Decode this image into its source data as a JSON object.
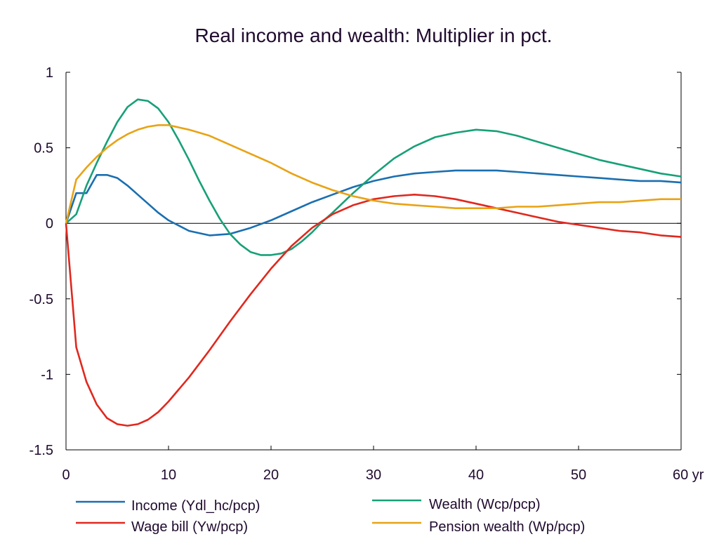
{
  "chart_data": {
    "type": "line",
    "title": "Real income and wealth: Multiplier in pct.",
    "xlabel": "",
    "ylabel": "",
    "xlim": [
      0,
      60
    ],
    "ylim": [
      -1.5,
      1
    ],
    "x_ticks": [
      0,
      10,
      20,
      30,
      40,
      50,
      60
    ],
    "x_tick_labels": [
      "0",
      "10",
      "20",
      "30",
      "40",
      "50",
      "60 yr"
    ],
    "y_ticks": [
      1,
      0.5,
      0,
      -0.5,
      -1,
      -1.5
    ],
    "y_tick_labels": [
      "1",
      "0.5",
      "0",
      "-0.5",
      "-1",
      "-1.5"
    ],
    "zero_line": true,
    "grid": false,
    "legend_position": "bottom",
    "series": [
      {
        "name": "Income (Ydl_hc/pcp)",
        "color": "#1a6fb0",
        "points": [
          [
            0,
            0
          ],
          [
            1,
            0.2
          ],
          [
            2,
            0.2
          ],
          [
            3,
            0.32
          ],
          [
            4,
            0.32
          ],
          [
            5,
            0.3
          ],
          [
            6,
            0.25
          ],
          [
            7,
            0.19
          ],
          [
            8,
            0.13
          ],
          [
            9,
            0.07
          ],
          [
            10,
            0.02
          ],
          [
            12,
            -0.05
          ],
          [
            14,
            -0.08
          ],
          [
            16,
            -0.07
          ],
          [
            18,
            -0.03
          ],
          [
            20,
            0.02
          ],
          [
            22,
            0.08
          ],
          [
            24,
            0.14
          ],
          [
            26,
            0.19
          ],
          [
            28,
            0.24
          ],
          [
            30,
            0.28
          ],
          [
            32,
            0.31
          ],
          [
            34,
            0.33
          ],
          [
            36,
            0.34
          ],
          [
            38,
            0.35
          ],
          [
            40,
            0.35
          ],
          [
            42,
            0.35
          ],
          [
            44,
            0.34
          ],
          [
            46,
            0.33
          ],
          [
            48,
            0.32
          ],
          [
            50,
            0.31
          ],
          [
            52,
            0.3
          ],
          [
            54,
            0.29
          ],
          [
            56,
            0.28
          ],
          [
            58,
            0.28
          ],
          [
            60,
            0.27
          ]
        ]
      },
      {
        "name": "Wealth (Wcp/pcp)",
        "color": "#17a078",
        "points": [
          [
            0,
            0
          ],
          [
            1,
            0.06
          ],
          [
            2,
            0.25
          ],
          [
            3,
            0.4
          ],
          [
            4,
            0.54
          ],
          [
            5,
            0.67
          ],
          [
            6,
            0.77
          ],
          [
            7,
            0.82
          ],
          [
            8,
            0.81
          ],
          [
            9,
            0.76
          ],
          [
            10,
            0.67
          ],
          [
            11,
            0.55
          ],
          [
            12,
            0.42
          ],
          [
            13,
            0.28
          ],
          [
            14,
            0.15
          ],
          [
            15,
            0.03
          ],
          [
            16,
            -0.07
          ],
          [
            17,
            -0.14
          ],
          [
            18,
            -0.19
          ],
          [
            19,
            -0.21
          ],
          [
            20,
            -0.21
          ],
          [
            21,
            -0.2
          ],
          [
            22,
            -0.17
          ],
          [
            23,
            -0.12
          ],
          [
            24,
            -0.06
          ],
          [
            25,
            0.01
          ],
          [
            26,
            0.07
          ],
          [
            28,
            0.2
          ],
          [
            30,
            0.32
          ],
          [
            32,
            0.43
          ],
          [
            34,
            0.51
          ],
          [
            36,
            0.57
          ],
          [
            38,
            0.6
          ],
          [
            40,
            0.62
          ],
          [
            42,
            0.61
          ],
          [
            44,
            0.58
          ],
          [
            46,
            0.54
          ],
          [
            48,
            0.5
          ],
          [
            50,
            0.46
          ],
          [
            52,
            0.42
          ],
          [
            54,
            0.39
          ],
          [
            56,
            0.36
          ],
          [
            58,
            0.33
          ],
          [
            60,
            0.31
          ]
        ]
      },
      {
        "name": "Wage bill (Yw/pcp)",
        "color": "#e0281e",
        "points": [
          [
            0,
            0
          ],
          [
            1,
            -0.82
          ],
          [
            2,
            -1.05
          ],
          [
            3,
            -1.2
          ],
          [
            4,
            -1.29
          ],
          [
            5,
            -1.33
          ],
          [
            6,
            -1.34
          ],
          [
            7,
            -1.33
          ],
          [
            8,
            -1.3
          ],
          [
            9,
            -1.25
          ],
          [
            10,
            -1.18
          ],
          [
            12,
            -1.02
          ],
          [
            14,
            -0.84
          ],
          [
            16,
            -0.65
          ],
          [
            18,
            -0.47
          ],
          [
            20,
            -0.3
          ],
          [
            22,
            -0.15
          ],
          [
            24,
            -0.03
          ],
          [
            26,
            0.06
          ],
          [
            28,
            0.12
          ],
          [
            30,
            0.16
          ],
          [
            32,
            0.18
          ],
          [
            34,
            0.19
          ],
          [
            36,
            0.18
          ],
          [
            38,
            0.16
          ],
          [
            40,
            0.13
          ],
          [
            42,
            0.1
          ],
          [
            44,
            0.07
          ],
          [
            46,
            0.04
          ],
          [
            48,
            0.01
          ],
          [
            50,
            -0.01
          ],
          [
            52,
            -0.03
          ],
          [
            54,
            -0.05
          ],
          [
            56,
            -0.06
          ],
          [
            58,
            -0.08
          ],
          [
            60,
            -0.09
          ]
        ]
      },
      {
        "name": "Pension wealth (Wp/pcp)",
        "color": "#e8a315",
        "points": [
          [
            0,
            0
          ],
          [
            1,
            0.29
          ],
          [
            2,
            0.37
          ],
          [
            3,
            0.44
          ],
          [
            4,
            0.5
          ],
          [
            5,
            0.55
          ],
          [
            6,
            0.59
          ],
          [
            7,
            0.62
          ],
          [
            8,
            0.64
          ],
          [
            9,
            0.65
          ],
          [
            10,
            0.65
          ],
          [
            12,
            0.62
          ],
          [
            14,
            0.58
          ],
          [
            16,
            0.52
          ],
          [
            18,
            0.46
          ],
          [
            20,
            0.4
          ],
          [
            22,
            0.33
          ],
          [
            24,
            0.27
          ],
          [
            26,
            0.22
          ],
          [
            28,
            0.18
          ],
          [
            30,
            0.15
          ],
          [
            32,
            0.13
          ],
          [
            34,
            0.12
          ],
          [
            36,
            0.11
          ],
          [
            38,
            0.1
          ],
          [
            40,
            0.1
          ],
          [
            42,
            0.1
          ],
          [
            44,
            0.11
          ],
          [
            46,
            0.11
          ],
          [
            48,
            0.12
          ],
          [
            50,
            0.13
          ],
          [
            52,
            0.14
          ],
          [
            54,
            0.14
          ],
          [
            56,
            0.15
          ],
          [
            58,
            0.16
          ],
          [
            60,
            0.16
          ]
        ]
      }
    ]
  }
}
